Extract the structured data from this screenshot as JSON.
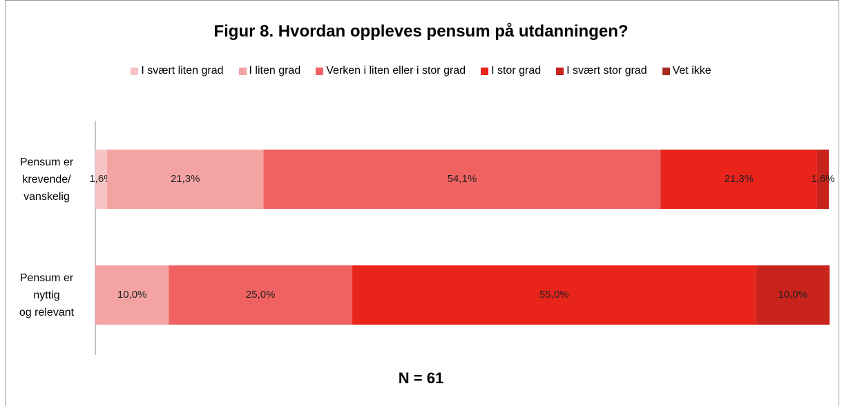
{
  "chart_data": {
    "type": "stacked_bar_horizontal",
    "title": "Figur 8. Hvordan oppleves pensum på utdanningen?",
    "categories": [
      "Pensum er\nkrevende/\nvanskelig",
      "Pensum er\nnyttig\nog relevant"
    ],
    "xlim": [
      0,
      100
    ],
    "series": [
      {
        "name": "I svært liten grad",
        "color": "#f7c4c4",
        "values": [
          1.6,
          null
        ],
        "value_labels": [
          "1,6%",
          null
        ]
      },
      {
        "name": "I liten grad",
        "color": "#f4a3a3",
        "values": [
          21.3,
          10.0
        ],
        "value_labels": [
          "21,3%",
          "10,0%"
        ]
      },
      {
        "name": "Verken i liten eller i stor grad",
        "color": "#f06262",
        "values": [
          54.1,
          25.0
        ],
        "value_labels": [
          "54,1%",
          "25,0%"
        ]
      },
      {
        "name": "I stor grad",
        "color": "#e8241b",
        "values": [
          21.3,
          55.0
        ],
        "value_labels": [
          "21,3%",
          "55,0%"
        ]
      },
      {
        "name": "I svært stor grad",
        "color": "#c8241c",
        "values": [
          1.6,
          10.0
        ],
        "value_labels": [
          "1,6%",
          "10,0%"
        ]
      },
      {
        "name": "Vet ikke",
        "color": "#a82a22",
        "values": [
          null,
          null
        ],
        "value_labels": [
          null,
          null
        ]
      }
    ],
    "footnote": "N = 61"
  }
}
